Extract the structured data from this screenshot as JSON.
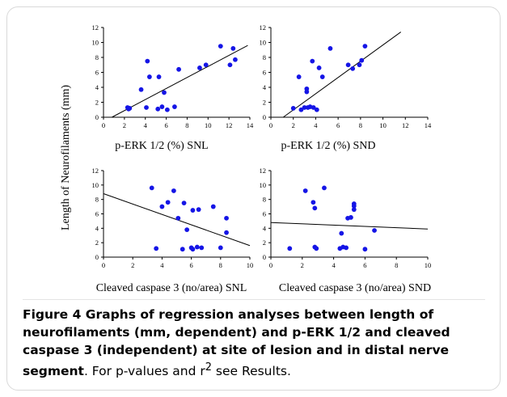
{
  "figure": {
    "ylabel": "Length of Neurofilaments (mm)",
    "caption_bold": "Figure 4 Graphs of regression analyses between length of neurofilaments (mm, dependent) and p-ERK 1/2 and cleaved caspase 3 (independent) at site of lesion and in distal nerve segment",
    "caption_text_1": ". For p-values and r",
    "caption_sup": "2",
    "caption_text_2": " see Results."
  },
  "colors": {
    "point": "#1515e6",
    "line": "#000000",
    "axis": "#000000"
  },
  "chart_data": [
    {
      "type": "scatter",
      "xlabel": "p-ERK 1/2 (%) SNL",
      "xlim": [
        0,
        14
      ],
      "ylim": [
        0,
        12
      ],
      "xticks": [
        0,
        2,
        4,
        6,
        8,
        10,
        12,
        14
      ],
      "yticks": [
        0,
        2,
        4,
        6,
        8,
        10,
        12
      ],
      "points": [
        [
          2.3,
          1.3
        ],
        [
          2.4,
          1.1
        ],
        [
          2.5,
          1.2
        ],
        [
          3.6,
          3.7
        ],
        [
          4.1,
          1.3
        ],
        [
          4.2,
          7.5
        ],
        [
          4.4,
          5.4
        ],
        [
          5.2,
          1.1
        ],
        [
          5.3,
          5.4
        ],
        [
          5.6,
          1.4
        ],
        [
          5.8,
          3.3
        ],
        [
          6.1,
          1.0
        ],
        [
          6.8,
          1.4
        ],
        [
          7.2,
          6.4
        ],
        [
          9.2,
          6.6
        ],
        [
          9.8,
          7.0
        ],
        [
          11.2,
          9.5
        ],
        [
          12.1,
          7.0
        ],
        [
          12.4,
          9.2
        ],
        [
          12.6,
          7.7
        ]
      ],
      "fit": [
        [
          0.8,
          0
        ],
        [
          13.8,
          9.6
        ]
      ]
    },
    {
      "type": "scatter",
      "xlabel": "p-ERK 1/2 (%) SND",
      "xlim": [
        0,
        14
      ],
      "ylim": [
        0,
        12
      ],
      "xticks": [
        0,
        2,
        4,
        6,
        8,
        10,
        12,
        14
      ],
      "yticks": [
        0,
        2,
        4,
        6,
        8,
        10,
        12
      ],
      "points": [
        [
          2.0,
          1.2
        ],
        [
          2.5,
          5.4
        ],
        [
          2.7,
          1.0
        ],
        [
          3.0,
          1.3
        ],
        [
          3.2,
          3.8
        ],
        [
          3.2,
          3.4
        ],
        [
          3.3,
          1.3
        ],
        [
          3.5,
          1.4
        ],
        [
          3.7,
          7.5
        ],
        [
          3.8,
          1.3
        ],
        [
          4.1,
          1.0
        ],
        [
          4.3,
          6.6
        ],
        [
          4.6,
          5.4
        ],
        [
          5.3,
          9.2
        ],
        [
          6.9,
          7.0
        ],
        [
          7.3,
          6.5
        ],
        [
          7.9,
          7.0
        ],
        [
          8.1,
          7.6
        ],
        [
          8.4,
          9.5
        ]
      ],
      "fit": [
        [
          1.1,
          0
        ],
        [
          11.6,
          11.4
        ]
      ]
    },
    {
      "type": "scatter",
      "xlabel": "Cleaved caspase 3 (no/area) SNL",
      "xlim": [
        0,
        10
      ],
      "ylim": [
        0,
        12
      ],
      "xticks": [
        0,
        2,
        4,
        6,
        8,
        10
      ],
      "yticks": [
        0,
        2,
        4,
        6,
        8,
        10,
        12
      ],
      "points": [
        [
          3.3,
          9.6
        ],
        [
          3.6,
          1.2
        ],
        [
          4.0,
          7.0
        ],
        [
          4.4,
          7.6
        ],
        [
          4.8,
          9.2
        ],
        [
          5.1,
          5.4
        ],
        [
          5.4,
          1.1
        ],
        [
          5.5,
          7.5
        ],
        [
          5.7,
          3.8
        ],
        [
          6.0,
          1.3
        ],
        [
          6.1,
          6.5
        ],
        [
          6.1,
          1.1
        ],
        [
          6.4,
          1.4
        ],
        [
          6.5,
          6.6
        ],
        [
          6.7,
          1.3
        ],
        [
          7.5,
          7.0
        ],
        [
          8.0,
          1.3
        ],
        [
          8.4,
          5.4
        ],
        [
          8.4,
          3.4
        ]
      ],
      "fit": [
        [
          0,
          8.8
        ],
        [
          10,
          1.6
        ]
      ]
    },
    {
      "type": "scatter",
      "xlabel": "Cleaved caspase 3 (no/area) SND",
      "xlim": [
        0,
        10
      ],
      "ylim": [
        0,
        12
      ],
      "xticks": [
        0,
        2,
        4,
        6,
        8,
        10
      ],
      "yticks": [
        0,
        2,
        4,
        6,
        8,
        10,
        12
      ],
      "points": [
        [
          1.2,
          1.2
        ],
        [
          2.2,
          9.2
        ],
        [
          2.7,
          7.6
        ],
        [
          2.8,
          6.8
        ],
        [
          2.8,
          1.4
        ],
        [
          2.9,
          1.2
        ],
        [
          3.4,
          9.6
        ],
        [
          4.4,
          1.2
        ],
        [
          4.5,
          3.3
        ],
        [
          4.6,
          1.4
        ],
        [
          4.8,
          1.3
        ],
        [
          4.9,
          5.4
        ],
        [
          5.1,
          5.5
        ],
        [
          5.3,
          6.6
        ],
        [
          5.3,
          7.4
        ],
        [
          5.3,
          7.1
        ],
        [
          6.0,
          1.1
        ],
        [
          6.6,
          3.7
        ]
      ],
      "fit": [
        [
          0,
          4.8
        ],
        [
          10,
          3.9
        ]
      ]
    }
  ]
}
